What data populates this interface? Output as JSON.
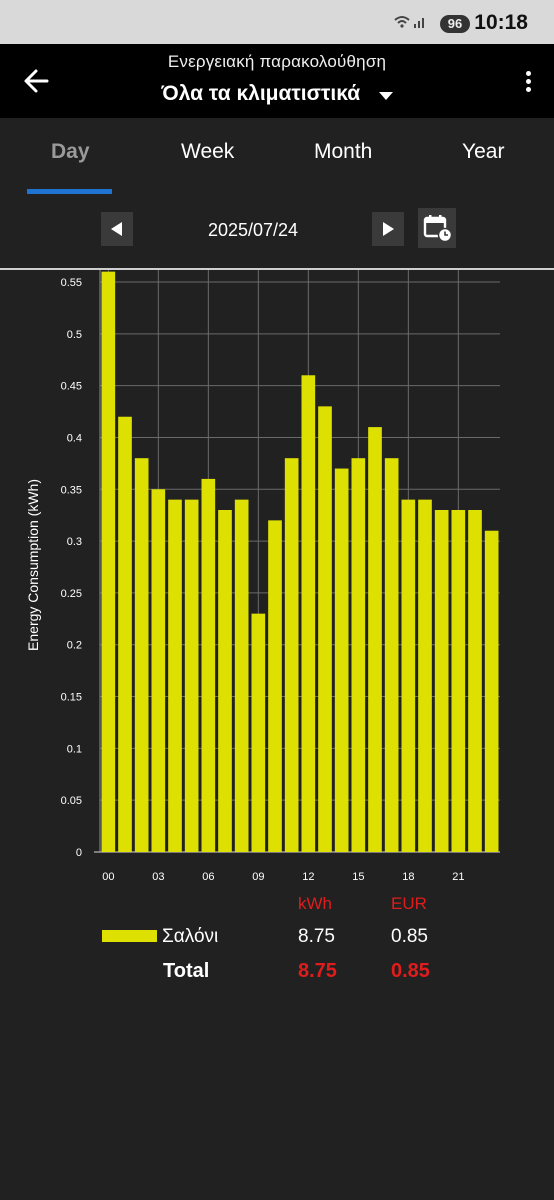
{
  "status_bar": {
    "time": "10:18",
    "battery": "96",
    "signal_icon": "wifi-signal-icon"
  },
  "header": {
    "subtitle": "Ενεργειακή παρακολούθηση",
    "title": "Όλα τα κλιματιστικά",
    "back_icon": "arrow-left-icon",
    "menu_icon": "more-vertical-icon"
  },
  "tabs": [
    "Day",
    "Week",
    "Month",
    "Year"
  ],
  "active_tab": "Day",
  "date_nav": {
    "date": "2025/07/24",
    "prev_icon": "triangle-left-icon",
    "next_icon": "triangle-right-icon",
    "calendar_icon": "calendar-clock-icon"
  },
  "chart_data": {
    "type": "bar",
    "ylabel": "Energy Consumption (kWh)",
    "xlabel": "",
    "ylim": [
      0,
      0.55
    ],
    "yticks": [
      0,
      0.05,
      0.1,
      0.15,
      0.2,
      0.25,
      0.3,
      0.35,
      0.4,
      0.45,
      0.5,
      0.55
    ],
    "ytick_labels": [
      "0",
      "0.05",
      "0.1",
      "0.15",
      "0.2",
      "0.25",
      "0.3",
      "0.35",
      "0.4",
      "0.45",
      "0.5",
      "0.55"
    ],
    "xtick_labels": [
      "00",
      "03",
      "06",
      "09",
      "12",
      "15",
      "18",
      "21"
    ],
    "categories": [
      "00",
      "01",
      "02",
      "03",
      "04",
      "05",
      "06",
      "07",
      "08",
      "09",
      "10",
      "11",
      "12",
      "13",
      "14",
      "15",
      "16",
      "17",
      "18",
      "19",
      "20",
      "21",
      "22",
      "23"
    ],
    "series": [
      {
        "name": "Σαλόνι",
        "color": "#dde000",
        "values": [
          0.56,
          0.42,
          0.38,
          0.35,
          0.34,
          0.34,
          0.36,
          0.33,
          0.34,
          0.23,
          0.32,
          0.38,
          0.46,
          0.43,
          0.37,
          0.38,
          0.41,
          0.38,
          0.34,
          0.34,
          0.33,
          0.33,
          0.33,
          0.31
        ]
      }
    ],
    "grid": true
  },
  "legend": {
    "col_kwh": "kWh",
    "col_eur": "EUR",
    "rows": [
      {
        "name": "Σαλόνι",
        "kwh": "8.75",
        "eur": "0.85"
      }
    ],
    "total": {
      "label": "Total",
      "kwh": "8.75",
      "eur": "0.85"
    }
  },
  "colors": {
    "accent": "#1f74d1",
    "bar": "#dde000",
    "total": "#e11c1c",
    "background": "#212121"
  }
}
